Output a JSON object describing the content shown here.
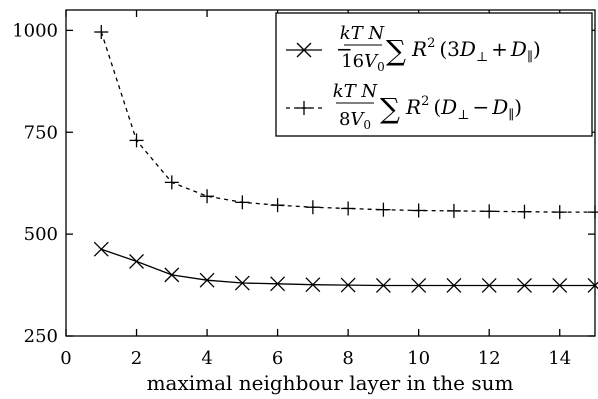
{
  "chart_data": {
    "type": "line",
    "title": "",
    "xlabel": "maximal neighbour layer in the sum",
    "ylabel": "",
    "xlim": [
      0,
      15
    ],
    "ylim": [
      250,
      1050
    ],
    "xticks": [
      "0",
      "2",
      "4",
      "6",
      "8",
      "10",
      "12",
      "14"
    ],
    "yticks": [
      "250",
      "500",
      "750",
      "1000"
    ],
    "grid": false,
    "legend_position": "top-right",
    "x": [
      1,
      2,
      3,
      4,
      5,
      6,
      7,
      8,
      9,
      10,
      11,
      12,
      13,
      14,
      15
    ],
    "series": [
      {
        "id": "cross",
        "name": "−(kTN/16V₀) ∑ R² (3D⊥ + D∥)",
        "marker": "x",
        "line": "solid",
        "color": "#000000",
        "values": [
          463,
          433,
          400,
          387,
          380,
          378,
          376,
          375,
          374,
          374,
          374,
          374,
          374,
          374,
          374
        ]
      },
      {
        "id": "plus",
        "name": "(kTN/8V₀) ∑ R² (D⊥ − D∥)",
        "marker": "+",
        "line": "dashed",
        "color": "#000000",
        "values": [
          996,
          730,
          627,
          593,
          578,
          571,
          566,
          563,
          560,
          558,
          557,
          556,
          555,
          554,
          554
        ]
      }
    ]
  }
}
